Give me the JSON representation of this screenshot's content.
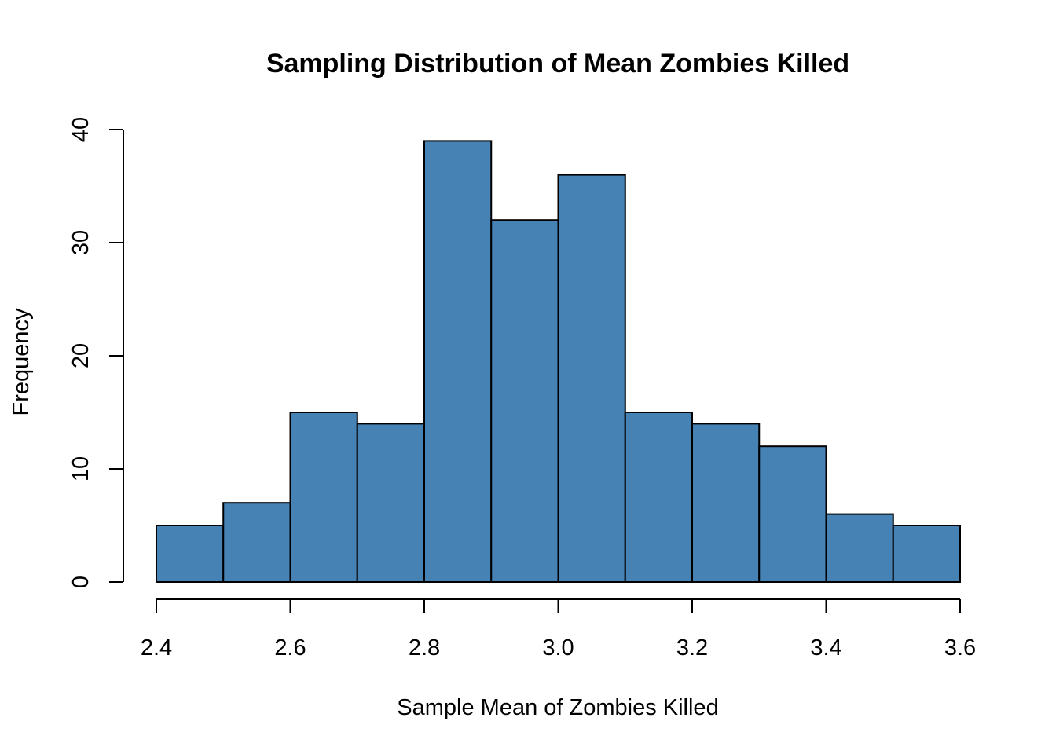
{
  "chart_data": {
    "type": "bar",
    "title": "Sampling Distribution of Mean Zombies Killed",
    "xlabel": "Sample Mean of Zombies Killed",
    "ylabel": "Frequency",
    "bins": [
      {
        "x0": 2.4,
        "x1": 2.5,
        "count": 5
      },
      {
        "x0": 2.5,
        "x1": 2.6,
        "count": 7
      },
      {
        "x0": 2.6,
        "x1": 2.7,
        "count": 15
      },
      {
        "x0": 2.7,
        "x1": 2.8,
        "count": 14
      },
      {
        "x0": 2.8,
        "x1": 2.9,
        "count": 39
      },
      {
        "x0": 2.9,
        "x1": 3.0,
        "count": 32
      },
      {
        "x0": 3.0,
        "x1": 3.1,
        "count": 36
      },
      {
        "x0": 3.1,
        "x1": 3.2,
        "count": 15
      },
      {
        "x0": 3.2,
        "x1": 3.3,
        "count": 14
      },
      {
        "x0": 3.3,
        "x1": 3.4,
        "count": 12
      },
      {
        "x0": 3.4,
        "x1": 3.5,
        "count": 6
      },
      {
        "x0": 3.5,
        "x1": 3.6,
        "count": 5
      }
    ],
    "xlim": [
      2.4,
      3.6
    ],
    "ylim": [
      0,
      40
    ],
    "xticks": [
      "2.4",
      "2.6",
      "2.8",
      "3.0",
      "3.2",
      "3.4",
      "3.6"
    ],
    "yticks": [
      "0",
      "10",
      "20",
      "30",
      "40"
    ],
    "bar_color": "#4682b4",
    "grid": false,
    "legend": "none"
  }
}
